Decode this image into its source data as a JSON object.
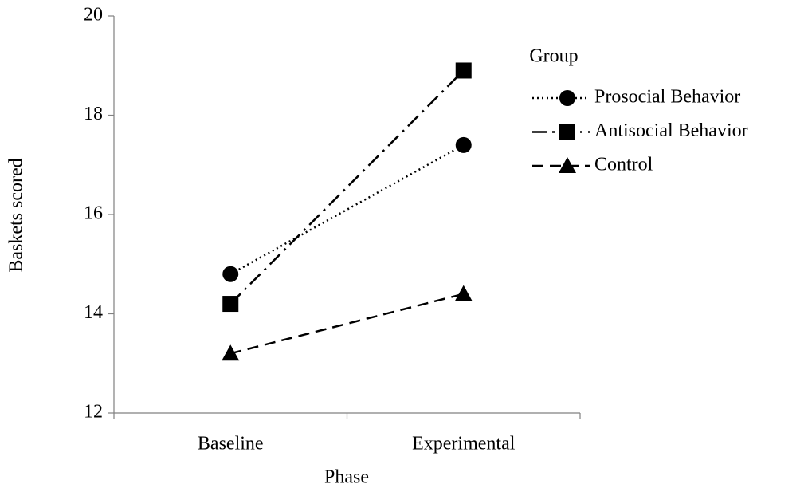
{
  "chart_data": {
    "type": "line",
    "xlabel": "Phase",
    "ylabel": "Baskets scored",
    "categories": [
      "Baseline",
      "Experimental"
    ],
    "series": [
      {
        "name": "Prosocial Behavior",
        "color": "#000000",
        "line_style": "dotted",
        "marker": "circle",
        "values": [
          14.8,
          17.4
        ]
      },
      {
        "name": "Antisocial Behavior",
        "color": "#000000",
        "line_style": "dashdot",
        "marker": "square",
        "values": [
          14.2,
          18.9
        ]
      },
      {
        "name": "Control",
        "color": "#000000",
        "line_style": "dashed",
        "marker": "triangle",
        "values": [
          13.2,
          14.4
        ]
      }
    ],
    "ylim": [
      12,
      20
    ],
    "yticks": [
      12,
      14,
      16,
      18,
      20
    ],
    "legend_title": "Group",
    "legend_position": "right"
  }
}
